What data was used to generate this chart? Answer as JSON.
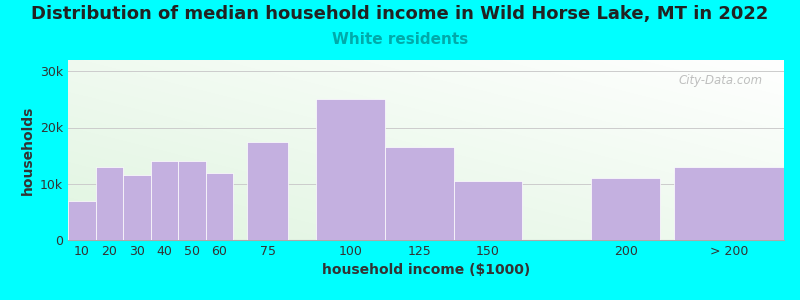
{
  "title": "Distribution of median household income in Wild Horse Lake, MT in 2022",
  "subtitle": "White residents",
  "xlabel": "household income ($1000)",
  "ylabel": "households",
  "background_color": "#00FFFF",
  "bar_color": "#C4B0E0",
  "categories": [
    "10",
    "20",
    "30",
    "40",
    "50",
    "60",
    "75",
    "100",
    "125",
    "150",
    "200",
    "> 200"
  ],
  "values": [
    7000,
    13000,
    11500,
    14000,
    14000,
    12000,
    17500,
    25000,
    16500,
    10500,
    11000,
    13000
  ],
  "left_edges": [
    10,
    20,
    30,
    40,
    50,
    60,
    75,
    100,
    125,
    150,
    200,
    230
  ],
  "widths": [
    10,
    10,
    10,
    10,
    10,
    10,
    15,
    25,
    25,
    25,
    25,
    40
  ],
  "yticks": [
    0,
    10000,
    20000,
    30000
  ],
  "ytick_labels": [
    "0",
    "10k",
    "20k",
    "30k"
  ],
  "ylim": [
    0,
    32000
  ],
  "xlim": [
    10,
    270
  ],
  "title_fontsize": 13,
  "subtitle_fontsize": 11,
  "subtitle_color": "#00AAAA",
  "axis_label_fontsize": 10,
  "tick_fontsize": 9,
  "watermark": "City-Data.com"
}
